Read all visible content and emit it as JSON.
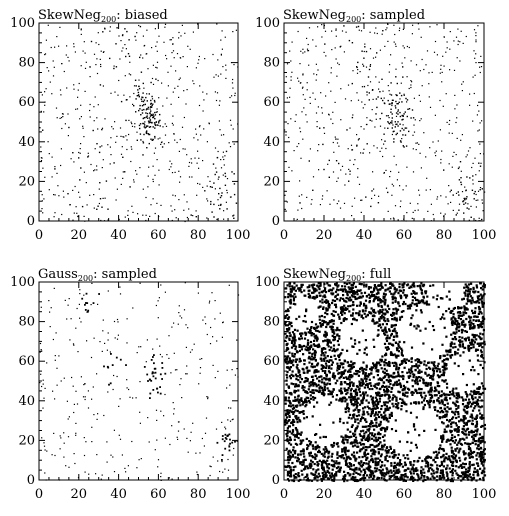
{
  "chart_data": [
    {
      "type": "scatter",
      "title": {
        "main": "SkewNeg",
        "sub": "200",
        "suffix": ": biased"
      },
      "xlim": [
        0,
        100
      ],
      "ylim": [
        0,
        100
      ],
      "xticks": [
        0,
        20,
        40,
        60,
        80,
        100
      ],
      "yticks": [
        0,
        20,
        40,
        60,
        80,
        100
      ],
      "grid": false,
      "density": "sparse",
      "clusters": [
        {
          "x": 55,
          "y": 50,
          "spread": 3,
          "count": 90
        },
        {
          "x": 52,
          "y": 62,
          "spread": 4,
          "count": 40
        },
        {
          "x": 38,
          "y": 88,
          "spread": 8,
          "count": 25
        },
        {
          "x": 92,
          "y": 12,
          "spread": 6,
          "count": 40
        },
        {
          "x": 30,
          "y": 30,
          "spread": 10,
          "count": 30
        }
      ]
    },
    {
      "type": "scatter",
      "title": {
        "main": "SkewNeg",
        "sub": "200",
        "suffix": ": sampled"
      },
      "xlim": [
        0,
        100
      ],
      "ylim": [
        0,
        100
      ],
      "xticks": [
        0,
        20,
        40,
        60,
        80,
        100
      ],
      "yticks": [
        0,
        20,
        40,
        60,
        80,
        100
      ],
      "grid": false,
      "density": "sparse",
      "clusters": [
        {
          "x": 55,
          "y": 50,
          "spread": 4,
          "count": 60
        },
        {
          "x": 52,
          "y": 62,
          "spread": 5,
          "count": 40
        },
        {
          "x": 38,
          "y": 88,
          "spread": 8,
          "count": 25
        },
        {
          "x": 92,
          "y": 12,
          "spread": 6,
          "count": 40
        },
        {
          "x": 30,
          "y": 30,
          "spread": 10,
          "count": 30
        }
      ]
    },
    {
      "type": "scatter",
      "title": {
        "main": "Gauss",
        "sub": "200",
        "suffix": ": sampled"
      },
      "xlim": [
        0,
        100
      ],
      "ylim": [
        0,
        100
      ],
      "xticks": [
        0,
        20,
        40,
        60,
        80,
        100
      ],
      "yticks": [
        0,
        20,
        40,
        60,
        80,
        100
      ],
      "grid": false,
      "density": "sparse",
      "clusters": [
        {
          "x": 58,
          "y": 52,
          "spread": 3,
          "count": 30
        },
        {
          "x": 94,
          "y": 20,
          "spread": 2,
          "count": 20
        },
        {
          "x": 25,
          "y": 88,
          "spread": 3,
          "count": 10
        },
        {
          "x": 35,
          "y": 60,
          "spread": 3,
          "count": 10
        }
      ]
    },
    {
      "type": "scatter",
      "title": {
        "main": "SkewNeg",
        "sub": "200",
        "suffix": ": full"
      },
      "xlim": [
        0,
        100
      ],
      "ylim": [
        0,
        100
      ],
      "xticks": [
        0,
        20,
        40,
        60,
        80,
        100
      ],
      "yticks": [
        0,
        20,
        40,
        60,
        80,
        100
      ],
      "grid": false,
      "density": "full",
      "voids": [
        {
          "x": 70,
          "y": 75,
          "r": 14
        },
        {
          "x": 38,
          "y": 70,
          "r": 12
        },
        {
          "x": 20,
          "y": 30,
          "r": 12
        },
        {
          "x": 65,
          "y": 25,
          "r": 14
        },
        {
          "x": 90,
          "y": 55,
          "r": 10
        },
        {
          "x": 80,
          "y": 95,
          "r": 9
        },
        {
          "x": 10,
          "y": 85,
          "r": 8
        }
      ]
    }
  ]
}
